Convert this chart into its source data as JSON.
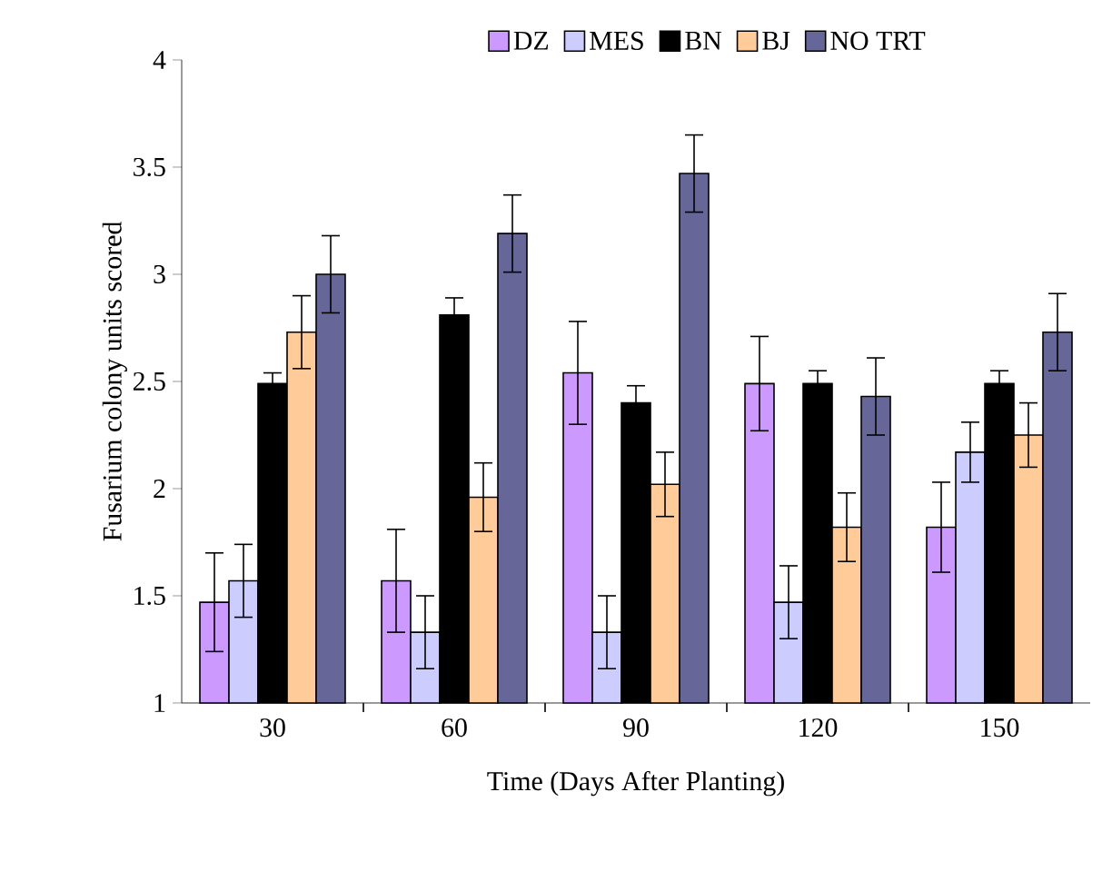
{
  "chart_data": {
    "type": "bar",
    "xlabel": "Time (Days After Planting)",
    "ylabel": "Fusarium colony units scored",
    "categories": [
      "30",
      "60",
      "90",
      "120",
      "150"
    ],
    "series": [
      {
        "name": "DZ",
        "color": "#cc99ff",
        "values": [
          1.47,
          1.57,
          2.54,
          2.49,
          1.82
        ],
        "errors": [
          0.23,
          0.24,
          0.24,
          0.22,
          0.21
        ]
      },
      {
        "name": "MES",
        "color": "#ccccff",
        "values": [
          1.57,
          1.33,
          1.33,
          1.47,
          2.17
        ],
        "errors": [
          0.17,
          0.17,
          0.17,
          0.17,
          0.14
        ]
      },
      {
        "name": "BN",
        "color": "#000000",
        "values": [
          2.49,
          2.81,
          2.4,
          2.49,
          2.49
        ],
        "errors": [
          0.05,
          0.08,
          0.08,
          0.06,
          0.06
        ]
      },
      {
        "name": "BJ",
        "color": "#ffcc99",
        "values": [
          2.73,
          1.96,
          2.02,
          1.82,
          2.25
        ],
        "errors": [
          0.17,
          0.16,
          0.15,
          0.16,
          0.15
        ]
      },
      {
        "name": "NO TRT",
        "color": "#666699",
        "values": [
          3.0,
          3.19,
          3.47,
          2.43,
          2.73
        ],
        "errors": [
          0.18,
          0.18,
          0.18,
          0.18,
          0.18
        ]
      }
    ],
    "ylim": [
      1,
      4
    ],
    "yticks": [
      1,
      1.5,
      2,
      2.5,
      3,
      3.5,
      4
    ],
    "grid": false,
    "legend": "top"
  }
}
